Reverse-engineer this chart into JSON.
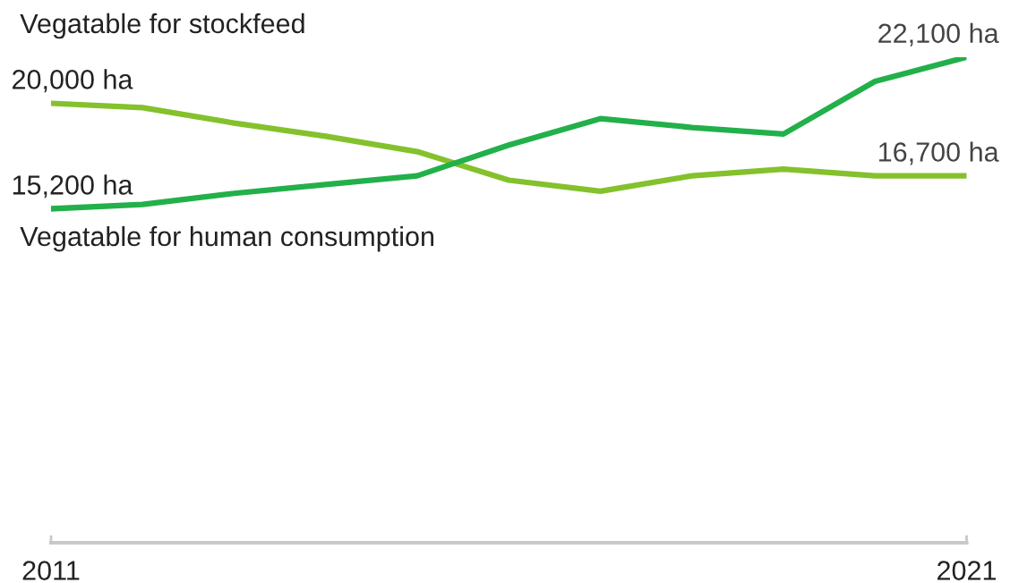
{
  "chart_data": {
    "type": "line",
    "x": [
      2011,
      2012,
      2013,
      2014,
      2015,
      2016,
      2017,
      2018,
      2019,
      2020,
      2021
    ],
    "series": [
      {
        "name": "Vegatable for stockfeed",
        "color": "#84c12c",
        "values": [
          20000,
          19800,
          19100,
          18500,
          17800,
          16500,
          16000,
          16700,
          17000,
          16700,
          16700
        ],
        "value_labels": [
          "20,000 ha",
          null,
          null,
          null,
          null,
          null,
          null,
          null,
          null,
          null,
          "16,700 ha"
        ]
      },
      {
        "name": "Vegatable for human consumption",
        "color": "#22b04a",
        "values": [
          15200,
          15400,
          15900,
          16300,
          16700,
          18100,
          19300,
          18900,
          18600,
          21000,
          22100
        ],
        "value_labels": [
          "15,200 ha",
          null,
          null,
          null,
          null,
          null,
          null,
          null,
          null,
          null,
          "22,100 ha"
        ]
      }
    ],
    "xlim": [
      2011,
      2021
    ],
    "xticks": [
      2011,
      2021
    ],
    "tick_labels": "x",
    "grid": false,
    "legend": false,
    "marker": "none",
    "line_style": "solid"
  }
}
